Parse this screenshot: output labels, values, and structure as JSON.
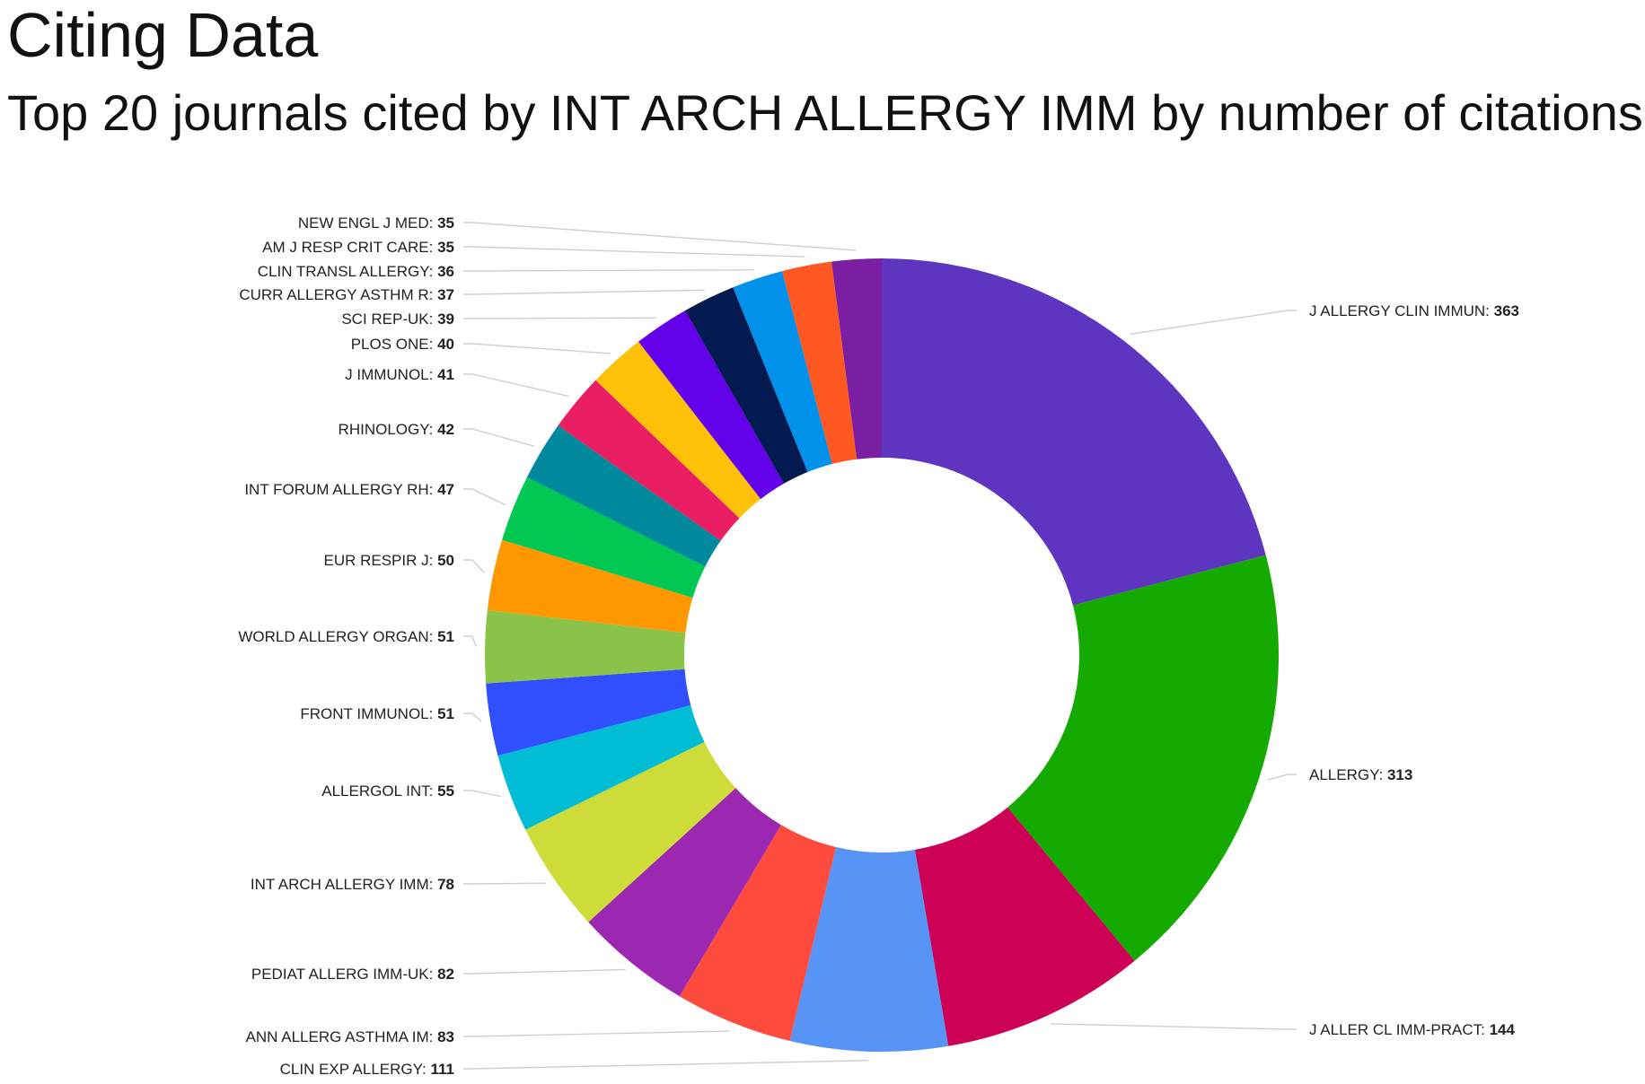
{
  "page": {
    "title": "Citing Data",
    "subtitle": "Top 20 journals cited by INT ARCH ALLERGY IMM by number of citations"
  },
  "chart_data": {
    "type": "pie",
    "subtype": "donut",
    "title": "Top 20 journals cited by INT ARCH ALLERGY IMM by number of citations",
    "slices": [
      {
        "label": "J ALLERGY CLIN IMMUN",
        "value": 363,
        "color": "#5E35C0"
      },
      {
        "label": "ALLERGY",
        "value": 313,
        "color": "#15AA00"
      },
      {
        "label": "J ALLER CL IMM-PRACT",
        "value": 144,
        "color": "#CC0055"
      },
      {
        "label": "CLIN EXP ALLERGY",
        "value": 111,
        "color": "#5894F5"
      },
      {
        "label": "ANN ALLERG ASTHMA IM",
        "value": 83,
        "color": "#FF4B3E"
      },
      {
        "label": "PEDIAT ALLERG IMM-UK",
        "value": 82,
        "color": "#9C27B0"
      },
      {
        "label": "INT ARCH ALLERGY IMM",
        "value": 78,
        "color": "#CDDC39"
      },
      {
        "label": "ALLERGOL INT",
        "value": 55,
        "color": "#00BCD4"
      },
      {
        "label": "FRONT IMMUNOL",
        "value": 51,
        "color": "#304FFE"
      },
      {
        "label": "WORLD ALLERGY ORGAN",
        "value": 51,
        "color": "#8BC34A"
      },
      {
        "label": "EUR RESPIR J",
        "value": 50,
        "color": "#FF9800"
      },
      {
        "label": "INT FORUM ALLERGY RH",
        "value": 47,
        "color": "#00C853"
      },
      {
        "label": "RHINOLOGY",
        "value": 42,
        "color": "#00899C"
      },
      {
        "label": "J IMMUNOL",
        "value": 41,
        "color": "#E91E63"
      },
      {
        "label": "PLOS ONE",
        "value": 40,
        "color": "#FFC107"
      },
      {
        "label": "SCI REP-UK",
        "value": 39,
        "color": "#6200EA"
      },
      {
        "label": "CURR ALLERGY ASTHM R",
        "value": 37,
        "color": "#021A4F"
      },
      {
        "label": "CLIN TRANSL ALLERGY",
        "value": 36,
        "color": "#0091EA"
      },
      {
        "label": "AM J RESP CRIT CARE",
        "value": 35,
        "color": "#FF5722"
      },
      {
        "label": "NEW ENGL J MED",
        "value": 35,
        "color": "#7B1FA2"
      }
    ],
    "legend": "none",
    "data_labels": "outside with leader lines"
  }
}
